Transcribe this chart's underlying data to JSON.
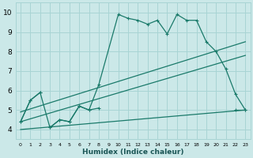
{
  "xlabel": "Humidex (Indice chaleur)",
  "background_color": "#cbe8e8",
  "grid_color": "#a8d4d4",
  "line_color": "#1a7a6a",
  "xlim": [
    -0.5,
    23.5
  ],
  "ylim": [
    3.5,
    10.5
  ],
  "xticks": [
    0,
    1,
    2,
    3,
    4,
    5,
    6,
    7,
    8,
    9,
    10,
    11,
    12,
    13,
    14,
    15,
    16,
    17,
    18,
    19,
    20,
    21,
    22,
    23
  ],
  "yticks": [
    4,
    5,
    6,
    7,
    8,
    9,
    10
  ],
  "series_top": {
    "x": [
      0,
      1,
      2,
      3,
      4,
      5,
      6,
      7,
      8,
      10,
      11,
      12,
      13,
      14,
      15,
      16,
      17,
      18,
      19,
      20,
      21,
      22,
      23
    ],
    "y": [
      4.4,
      5.5,
      5.9,
      4.1,
      4.5,
      4.4,
      5.2,
      5.0,
      6.3,
      9.9,
      9.7,
      9.6,
      9.4,
      9.6,
      8.9,
      9.9,
      9.6,
      9.6,
      8.5,
      8.0,
      7.1,
      5.8,
      5.0
    ]
  },
  "straight_upper": {
    "x": [
      0,
      23
    ],
    "y": [
      4.9,
      8.5
    ]
  },
  "straight_lower": {
    "x": [
      0,
      23
    ],
    "y": [
      4.4,
      7.8
    ]
  },
  "straight_bottom": {
    "x": [
      0,
      23
    ],
    "y": [
      4.0,
      5.0
    ]
  },
  "series_low": {
    "segments": [
      {
        "x": [
          0,
          1,
          2
        ],
        "y": [
          4.4,
          5.5,
          5.9
        ]
      },
      {
        "x": [
          3,
          4,
          5,
          6,
          7,
          8
        ],
        "y": [
          4.1,
          4.5,
          4.4,
          5.2,
          5.0,
          5.1
        ]
      },
      {
        "x": [
          22,
          23
        ],
        "y": [
          5.0,
          5.0
        ]
      }
    ]
  }
}
